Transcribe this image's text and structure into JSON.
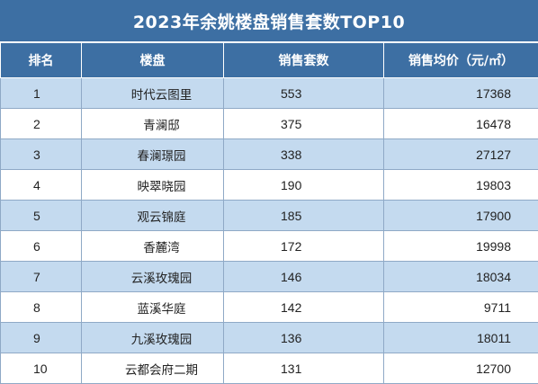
{
  "title": "2023年余姚楼盘销售套数TOP10",
  "columns": {
    "rank": "排名",
    "name": "楼盘",
    "units": "销售套数",
    "price": "销售均价（元/㎡）"
  },
  "rows": [
    {
      "rank": "1",
      "name": "时代云图里",
      "units": "553",
      "price": "17368"
    },
    {
      "rank": "2",
      "name": "青澜邸",
      "units": "375",
      "price": "16478"
    },
    {
      "rank": "3",
      "name": "春澜璟园",
      "units": "338",
      "price": "27127"
    },
    {
      "rank": "4",
      "name": "映翠晓园",
      "units": "190",
      "price": "19803"
    },
    {
      "rank": "5",
      "name": "观云锦庭",
      "units": "185",
      "price": "17900"
    },
    {
      "rank": "6",
      "name": "香麓湾",
      "units": "172",
      "price": "19998"
    },
    {
      "rank": "7",
      "name": "云溪玫瑰园",
      "units": "146",
      "price": "18034"
    },
    {
      "rank": "8",
      "name": "蓝溪华庭",
      "units": "142",
      "price": "9711"
    },
    {
      "rank": "9",
      "name": "九溪玫瑰园",
      "units": "136",
      "price": "18011"
    },
    {
      "rank": "10",
      "name": "云都会府二期",
      "units": "131",
      "price": "12700"
    }
  ]
}
